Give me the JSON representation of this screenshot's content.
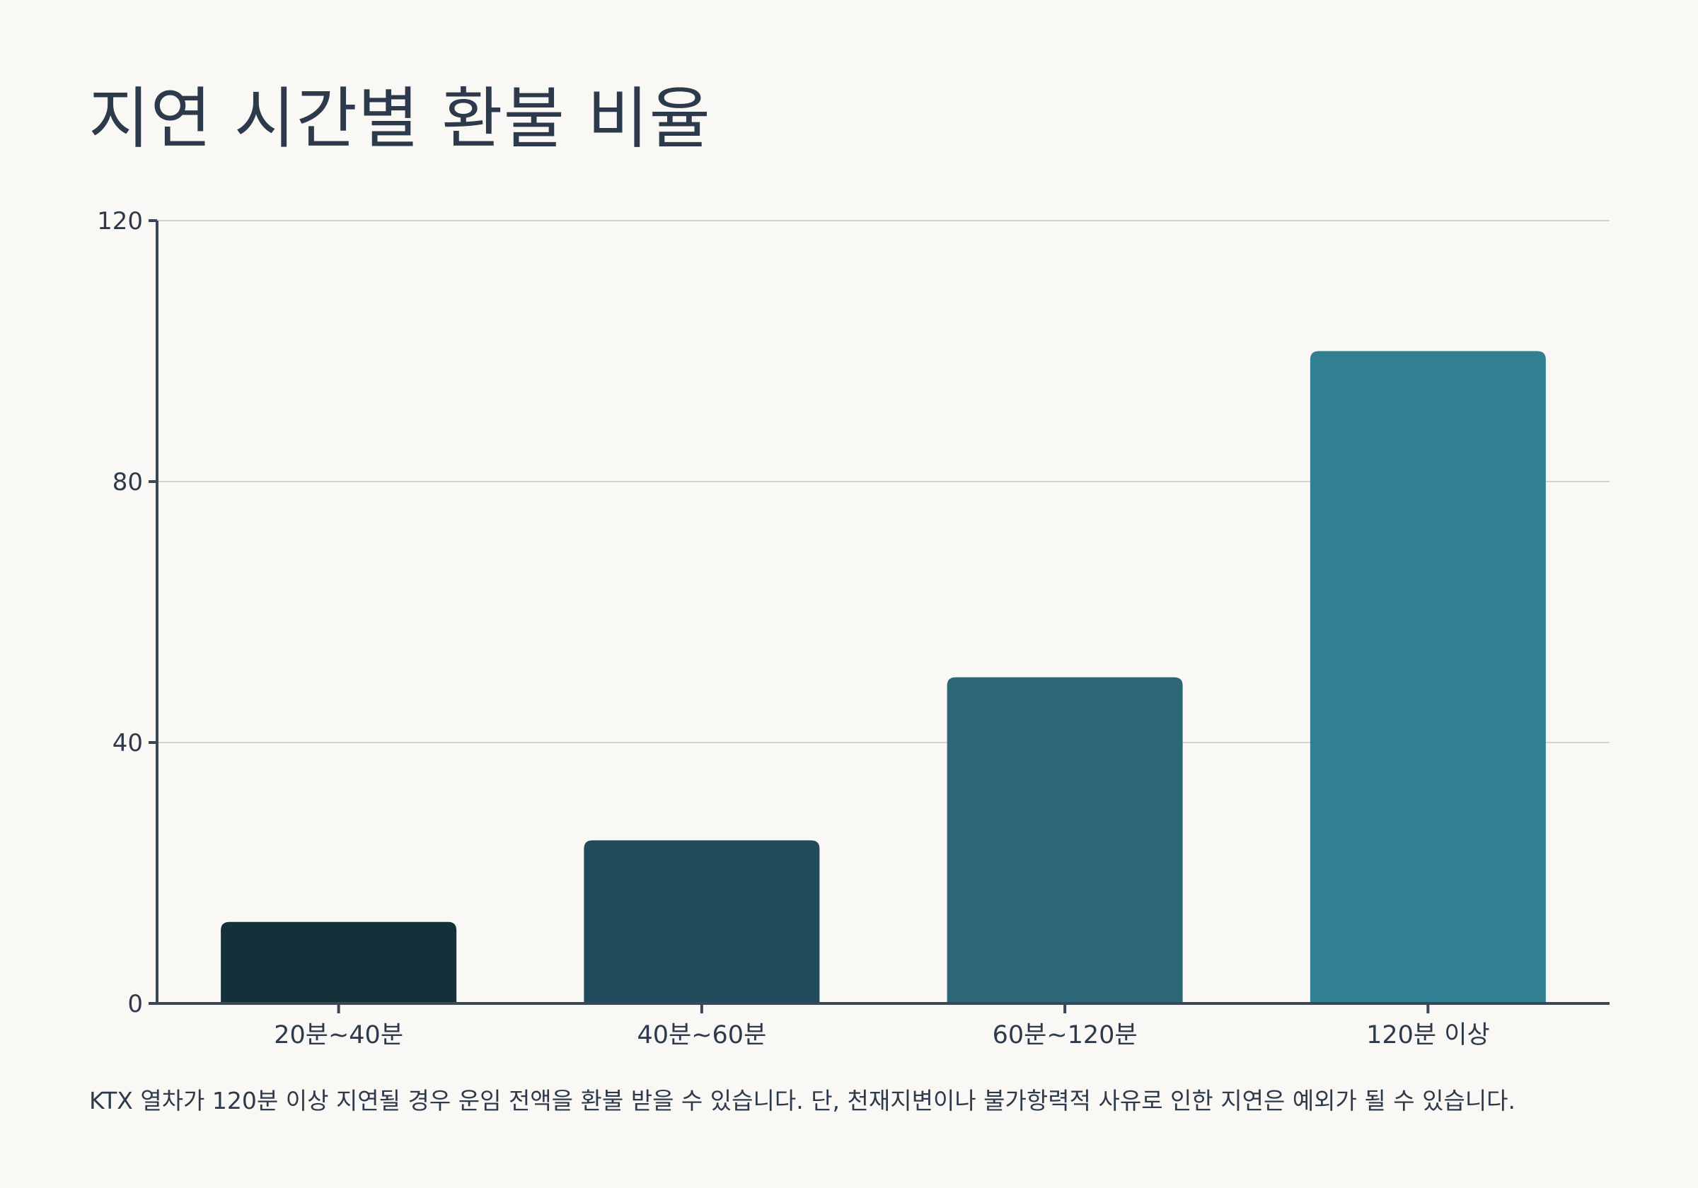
{
  "title": "지연 시간별 환불 비율",
  "caption": "KTX 열차가 120분 이상 지연될 경우 운임 전액을 환불 받을 수 있습니다. 단, 천재지변이나 불가항력적 사유로 인한 지연은 예외가 될 수 있습니다.",
  "chart_data": {
    "type": "bar",
    "categories": [
      "20분~40분",
      "40분~60분",
      "60분~120분",
      "120분 이상"
    ],
    "values": [
      12.5,
      25,
      50,
      100
    ],
    "ylim": [
      0,
      120
    ],
    "yticks": [
      0,
      40,
      80,
      120
    ],
    "grid": true,
    "colors": [
      "#16303a",
      "#214b5a",
      "#2b6777",
      "#327f91"
    ]
  },
  "colors": {
    "background": "#faf8f5",
    "text": "#2d3a4b",
    "axis": "#3b4656",
    "grid": "#d3d2cf"
  }
}
